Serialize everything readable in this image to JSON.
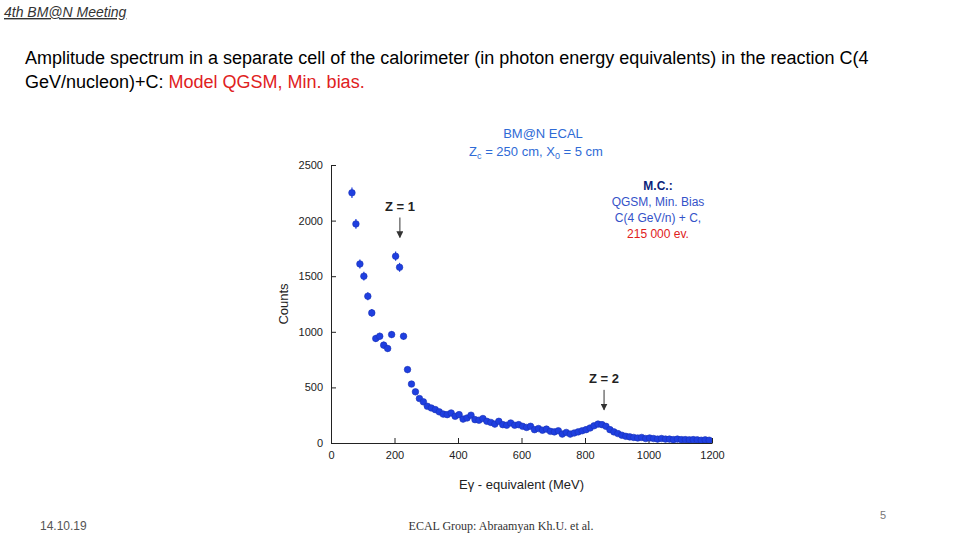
{
  "slide": {
    "header": "4th BM@N Meeting",
    "heading": "Amplitude spectrum in a separate cell of the calorimeter (in photon energy equivalents) in the reaction C(4 GeV/nucleon)+C: ",
    "heading_highlight": "Model QGSM, Min. bias.",
    "footer_date": "14.10.19",
    "footer_text": "ECAL Group: Abraamyan Kh.U. et al.",
    "page_number": "5"
  },
  "chart_data": {
    "type": "scatter",
    "title": "BM@N ECAL",
    "subtitle": [
      "Z",
      "c",
      " = 250 cm, X",
      "0",
      " = 5 cm"
    ],
    "xlabel": "Eγ - equivalent (MeV)",
    "ylabel": "Counts",
    "text_box": [
      "M.C.:",
      "QGSM, Min. Bias",
      "C(4 GeV/n) + C,",
      "215 000 ev."
    ],
    "annotations": [
      {
        "text": "Z = 1",
        "x": 217,
        "y": 1830
      },
      {
        "text": "Z = 2",
        "x": 860,
        "y": 280
      }
    ],
    "color": "#1f3fe0",
    "marker": "circle",
    "xlim": [
      0,
      1200
    ],
    "ylim": [
      0,
      2500
    ],
    "xticks": [
      0,
      200,
      400,
      600,
      800,
      1000,
      1200
    ],
    "yticks": [
      0,
      500,
      1000,
      1500,
      2000,
      2500
    ],
    "x": [
      66,
      78.5,
      91,
      103.5,
      116,
      128.5,
      141,
      153.5,
      166,
      178.5,
      191,
      203.5,
      216,
      228.5,
      241,
      253.5,
      266,
      278.5,
      291,
      303.5,
      316,
      328.5,
      341,
      353.5,
      366,
      378.5,
      391,
      403.5,
      416,
      428.5,
      441,
      453.5,
      466,
      478.5,
      491,
      503.5,
      516,
      528.5,
      541,
      553.5,
      566,
      578.5,
      591,
      603.5,
      616,
      628.5,
      641,
      653.5,
      666,
      678.5,
      691,
      703.5,
      716,
      728.5,
      741,
      753.5,
      766,
      778.5,
      791,
      803.5,
      816,
      828.5,
      841,
      853.5,
      866,
      878.5,
      891,
      903.5,
      916,
      928.5,
      941,
      953.5,
      966,
      978.5,
      991,
      1003.5,
      1016,
      1028.5,
      1041,
      1053.5,
      1066,
      1078.5,
      1091,
      1103.5,
      1116,
      1128.5,
      1141,
      1153.5,
      1166,
      1178.5,
      1191
    ],
    "values": [
      2250,
      1970,
      1610,
      1500,
      1320,
      1170,
      940,
      960,
      880,
      850,
      975,
      1680,
      1580,
      960,
      660,
      530,
      460,
      400,
      370,
      330,
      315,
      300,
      280,
      260,
      255,
      270,
      240,
      255,
      215,
      225,
      250,
      210,
      205,
      220,
      195,
      185,
      170,
      195,
      165,
      160,
      180,
      160,
      165,
      150,
      140,
      150,
      120,
      130,
      115,
      125,
      105,
      100,
      110,
      80,
      95,
      80,
      90,
      100,
      110,
      120,
      135,
      155,
      170,
      165,
      150,
      120,
      100,
      85,
      70,
      60,
      55,
      50,
      45,
      50,
      40,
      45,
      40,
      35,
      40,
      35,
      35,
      30,
      35,
      30,
      30,
      28,
      30,
      28,
      25,
      28,
      25
    ],
    "errors": [
      47,
      44,
      40,
      39,
      36,
      34,
      31,
      31,
      30,
      29,
      31,
      41,
      40,
      31,
      26,
      23,
      21,
      20,
      19,
      18,
      18,
      17,
      17,
      16,
      16,
      16,
      15,
      16,
      15,
      15,
      16,
      14,
      14,
      15,
      14,
      14,
      13,
      14,
      13,
      13,
      13,
      13,
      13,
      12,
      12,
      12,
      11,
      11,
      11,
      11,
      10,
      10,
      10,
      9,
      10,
      9,
      9,
      10,
      10,
      11,
      12,
      12,
      13,
      13,
      12,
      11,
      10,
      9,
      8,
      8,
      7,
      7,
      7,
      7,
      6,
      7,
      6,
      6,
      6,
      6,
      6,
      5,
      6,
      5,
      5,
      5,
      5,
      5,
      5,
      5,
      5
    ]
  }
}
